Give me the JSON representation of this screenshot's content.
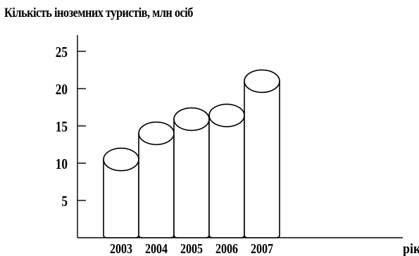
{
  "chart_data": {
    "type": "bar",
    "title": "Кількість іноземних туристів, млн осіб",
    "xlabel": "рік",
    "ylabel": "",
    "categories": [
      "2003",
      "2004",
      "2005",
      "2006",
      "2007"
    ],
    "values": [
      10.5,
      14,
      15.9,
      16.4,
      21
    ],
    "yticks": [
      5,
      10,
      15,
      20,
      25
    ],
    "ylim": [
      0,
      28
    ],
    "grid": false,
    "legend": "none"
  }
}
